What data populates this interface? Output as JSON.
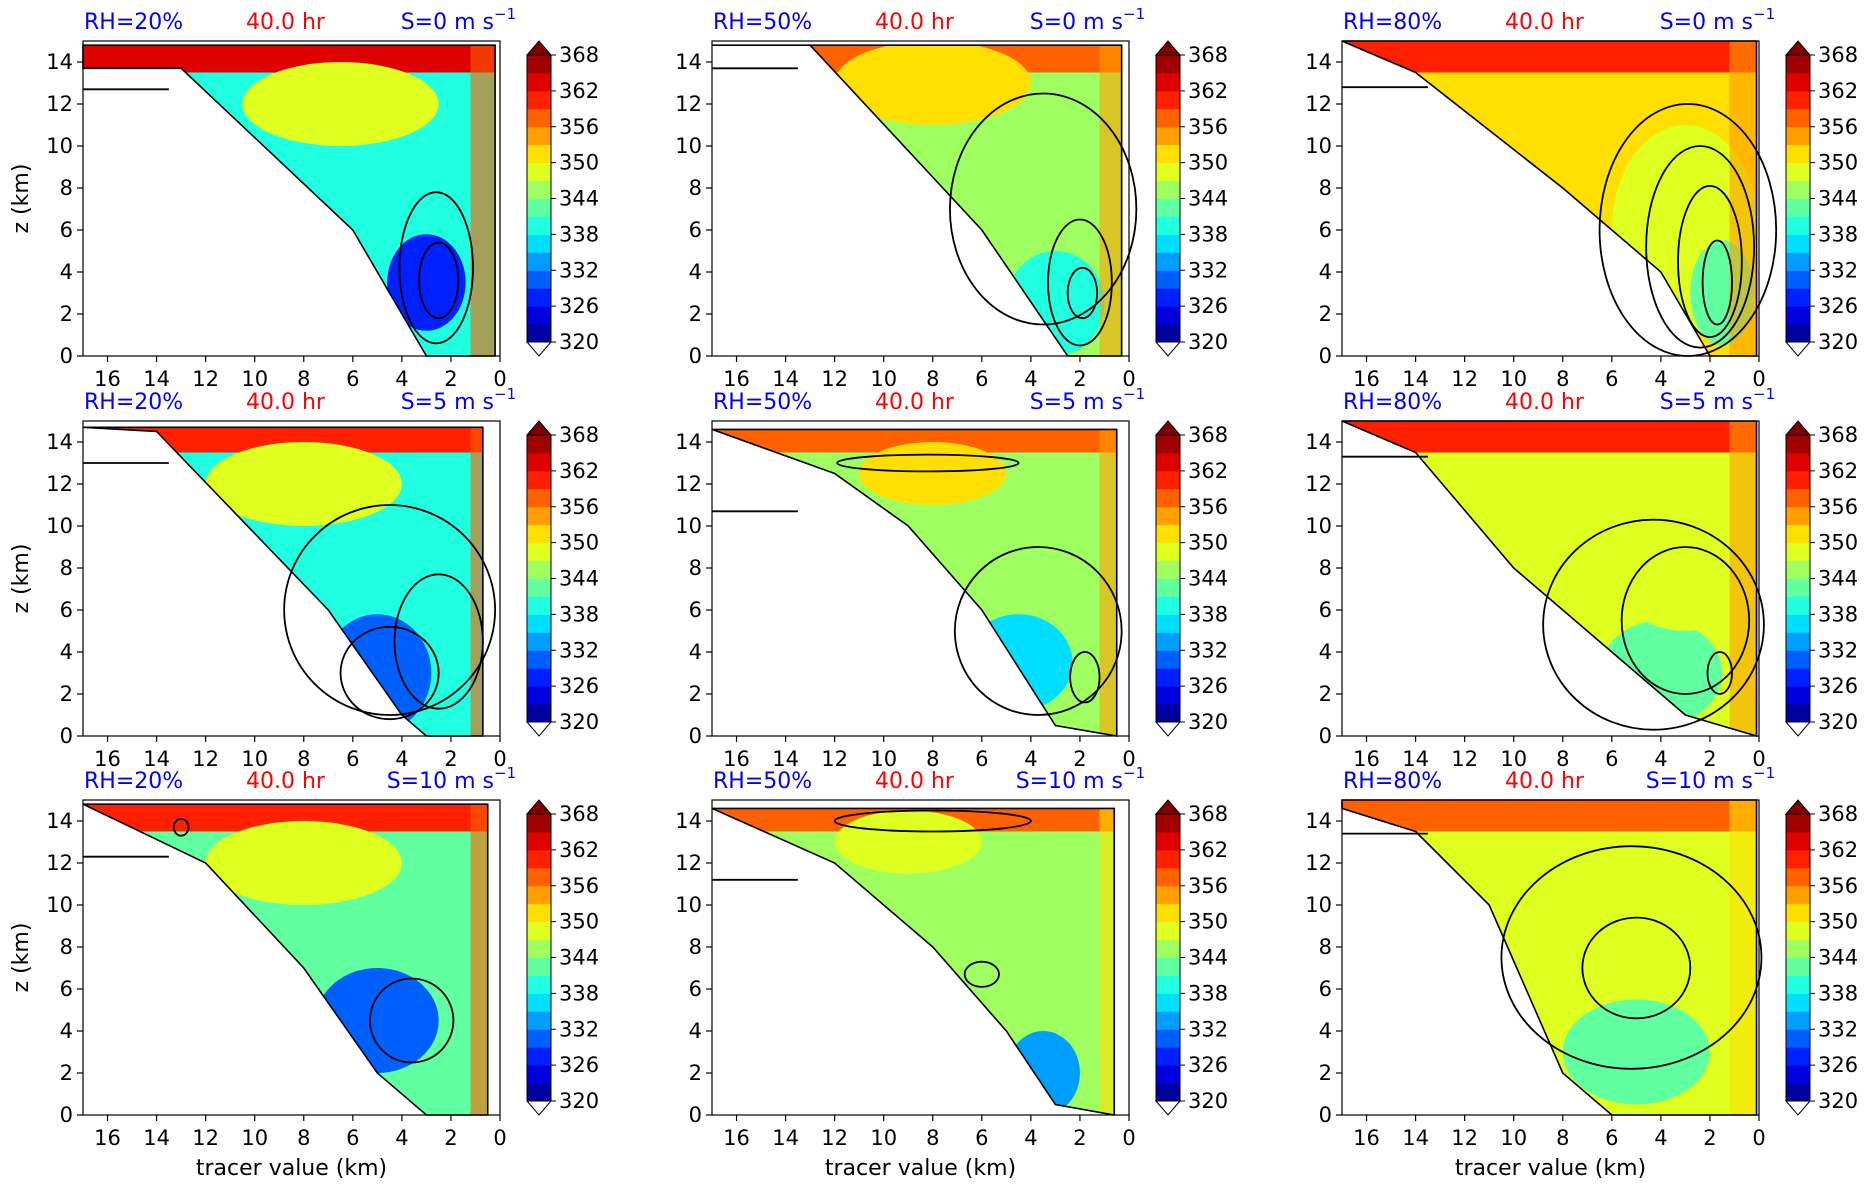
{
  "chart_data": {
    "type": "heatmap",
    "xlabel": "tracer value (km)",
    "ylabel": "z (km)",
    "xlim": [
      17,
      0
    ],
    "ylim": [
      0,
      15
    ],
    "x_ticks": [
      "16",
      "14",
      "12",
      "10",
      "8",
      "6",
      "4",
      "2",
      "0"
    ],
    "y_ticks": [
      "0",
      "2",
      "4",
      "6",
      "8",
      "10",
      "12",
      "14"
    ],
    "colorbar": {
      "range": [
        320,
        368
      ],
      "ticks": [
        "320",
        "326",
        "332",
        "338",
        "344",
        "350",
        "356",
        "362",
        "368"
      ],
      "extend": "both"
    },
    "title_colors": {
      "rh": "#0000ff",
      "time": "#ff0000",
      "shear": "#0000ff"
    },
    "panels": [
      {
        "rh": "RH=20%",
        "time": "40.0 hr",
        "shear": "S=0 m s",
        "shear_sup": "−1",
        "edge_top": 14.8,
        "boundary": [
          [
            17,
            13.7
          ],
          [
            13,
            13.7
          ],
          [
            6,
            6
          ],
          [
            3,
            0
          ]
        ],
        "right_edge": 0.2,
        "hline": 12.7,
        "base_value": 338,
        "blobs": [
          {
            "x": 3.0,
            "z": 3.5,
            "rx": 1.6,
            "rz": 2.3,
            "value": 328
          },
          {
            "x": 6.5,
            "z": 12.0,
            "rx": 4.0,
            "rz": 2.0,
            "value": 347
          }
        ],
        "top_value": 362,
        "contours": [
          {
            "cx": 2.6,
            "cz": 4.2,
            "rx": 1.5,
            "rz": 3.6
          },
          {
            "cx": 2.5,
            "cz": 3.6,
            "rx": 0.8,
            "rz": 1.8
          }
        ]
      },
      {
        "rh": "RH=50%",
        "time": "40.0 hr",
        "shear": "S=0 m s",
        "shear_sup": "−1",
        "edge_top": 14.8,
        "boundary": [
          [
            17,
            14.8
          ],
          [
            13,
            14.8
          ],
          [
            6,
            6
          ],
          [
            2.5,
            0
          ]
        ],
        "right_edge": 0.3,
        "hline": 13.7,
        "base_value": 346,
        "blobs": [
          {
            "x": 3.0,
            "z": 2.5,
            "rx": 2.0,
            "rz": 2.5,
            "value": 338
          },
          {
            "x": 8.0,
            "z": 13.0,
            "rx": 4.0,
            "rz": 2.0,
            "value": 350
          }
        ],
        "top_value": 358,
        "contours": [
          {
            "cx": 3.5,
            "cz": 7.0,
            "rx": 3.8,
            "rz": 5.5
          },
          {
            "cx": 2.0,
            "cz": 3.5,
            "rx": 1.3,
            "rz": 3.0
          },
          {
            "cx": 1.9,
            "cz": 3.0,
            "rx": 0.6,
            "rz": 1.2
          }
        ]
      },
      {
        "rh": "RH=80%",
        "time": "40.0 hr",
        "shear": "S=0 m s",
        "shear_sup": "−1",
        "edge_top": 15.0,
        "boundary": [
          [
            17,
            15
          ],
          [
            14,
            13.5
          ],
          [
            8,
            8
          ],
          [
            4,
            4
          ],
          [
            2,
            0
          ]
        ],
        "right_edge": 0.1,
        "hline": 12.8,
        "base_value": 352,
        "blobs": [
          {
            "x": 3.0,
            "z": 6.0,
            "rx": 3.0,
            "rz": 5.0,
            "value": 348
          },
          {
            "x": 1.5,
            "z": 3.0,
            "rx": 1.3,
            "rz": 2.5,
            "value": 343
          }
        ],
        "top_value": 359,
        "contours": [
          {
            "cx": 2.9,
            "cz": 6.0,
            "rx": 3.6,
            "rz": 6.0
          },
          {
            "cx": 2.4,
            "cz": 5.2,
            "rx": 2.2,
            "rz": 4.8
          },
          {
            "cx": 2.0,
            "cz": 4.5,
            "rx": 1.3,
            "rz": 3.6
          },
          {
            "cx": 1.7,
            "cz": 3.5,
            "rx": 0.6,
            "rz": 2.0
          }
        ]
      },
      {
        "rh": "RH=20%",
        "time": "40.0 hr",
        "shear": "S=5 m s",
        "shear_sup": "−1",
        "edge_top": 14.7,
        "boundary": [
          [
            17,
            14.7
          ],
          [
            14,
            14.5
          ],
          [
            7,
            6
          ],
          [
            4,
            1
          ],
          [
            3,
            0
          ]
        ],
        "right_edge": 0.7,
        "hline": 13.0,
        "base_value": 340,
        "blobs": [
          {
            "x": 5.0,
            "z": 3.0,
            "rx": 2.2,
            "rz": 2.8,
            "value": 330
          },
          {
            "x": 8.0,
            "z": 12.0,
            "rx": 4.0,
            "rz": 2.0,
            "value": 348
          }
        ],
        "top_value": 360,
        "contours": [
          {
            "cx": 4.5,
            "cz": 6.0,
            "rx": 4.3,
            "rz": 5.0
          },
          {
            "cx": 2.5,
            "cz": 4.5,
            "rx": 1.8,
            "rz": 3.2
          },
          {
            "cx": 4.5,
            "cz": 3.0,
            "rx": 2.0,
            "rz": 2.2
          }
        ]
      },
      {
        "rh": "RH=50%",
        "time": "40.0 hr",
        "shear": "S=5 m s",
        "shear_sup": "−1",
        "edge_top": 14.6,
        "boundary": [
          [
            17,
            14.6
          ],
          [
            12,
            12.5
          ],
          [
            9,
            10
          ],
          [
            6,
            6
          ],
          [
            3,
            0.5
          ]
        ],
        "right_edge": 0.5,
        "hline": 10.7,
        "base_value": 344,
        "blobs": [
          {
            "x": 4.5,
            "z": 3.5,
            "rx": 2.2,
            "rz": 2.3,
            "value": 336
          },
          {
            "x": 8.0,
            "z": 12.5,
            "rx": 3.0,
            "rz": 1.5,
            "value": 350
          }
        ],
        "top_value": 357,
        "contours": [
          {
            "cx": 3.7,
            "cz": 5.0,
            "rx": 3.4,
            "rz": 4.0
          },
          {
            "cx": 1.8,
            "cz": 2.8,
            "rx": 0.6,
            "rz": 1.2
          },
          {
            "cx": 8.2,
            "cz": 13.0,
            "rx": 3.7,
            "rz": 0.4
          }
        ]
      },
      {
        "rh": "RH=80%",
        "time": "40.0 hr",
        "shear": "S=5 m s",
        "shear_sup": "−1",
        "edge_top": 15.0,
        "boundary": [
          [
            17,
            15
          ],
          [
            14,
            13.5
          ],
          [
            10,
            8
          ],
          [
            6,
            4
          ],
          [
            3,
            1
          ]
        ],
        "right_edge": 0.1,
        "hline": 13.3,
        "base_value": 348,
        "blobs": [
          {
            "x": 4.0,
            "z": 3.0,
            "rx": 2.5,
            "rz": 2.5,
            "value": 342
          },
          {
            "x": 3.0,
            "z": 8.0,
            "rx": 3.0,
            "rz": 3.0,
            "value": 349
          }
        ],
        "top_value": 359,
        "contours": [
          {
            "cx": 4.3,
            "cz": 5.3,
            "rx": 4.5,
            "rz": 5.0
          },
          {
            "cx": 3.0,
            "cz": 5.5,
            "rx": 2.6,
            "rz": 3.5
          },
          {
            "cx": 1.6,
            "cz": 3.0,
            "rx": 0.5,
            "rz": 1.0
          }
        ]
      },
      {
        "rh": "RH=20%",
        "time": "40.0 hr",
        "shear": "S=10 m s",
        "shear_sup": "−1",
        "edge_top": 14.8,
        "boundary": [
          [
            17,
            14.8
          ],
          [
            12,
            12.0
          ],
          [
            8,
            7
          ],
          [
            5,
            2
          ],
          [
            3,
            0
          ]
        ],
        "right_edge": 0.5,
        "hline": 12.3,
        "base_value": 341,
        "blobs": [
          {
            "x": 5.0,
            "z": 4.5,
            "rx": 2.5,
            "rz": 2.5,
            "value": 331
          },
          {
            "x": 8.0,
            "z": 12.0,
            "rx": 4.0,
            "rz": 2.0,
            "value": 349
          }
        ],
        "top_value": 360,
        "contours": [
          {
            "cx": 3.6,
            "cz": 4.5,
            "rx": 1.7,
            "rz": 2.0
          },
          {
            "cx": 13.0,
            "cz": 13.7,
            "rx": 0.3,
            "rz": 0.4
          }
        ]
      },
      {
        "rh": "RH=50%",
        "time": "40.0 hr",
        "shear": "S=10 m s",
        "shear_sup": "−1",
        "edge_top": 14.6,
        "boundary": [
          [
            17,
            14.6
          ],
          [
            12,
            12
          ],
          [
            8,
            8
          ],
          [
            5,
            4
          ],
          [
            3,
            0.5
          ]
        ],
        "right_edge": 0.6,
        "hline": 11.2,
        "base_value": 344,
        "blobs": [
          {
            "x": 3.5,
            "z": 2.0,
            "rx": 1.5,
            "rz": 2.0,
            "value": 334
          },
          {
            "x": 9.0,
            "z": 13.0,
            "rx": 3.0,
            "rz": 1.5,
            "value": 349
          }
        ],
        "top_value": 356,
        "contours": [
          {
            "cx": 8.0,
            "cz": 14.0,
            "rx": 4.0,
            "rz": 0.5
          },
          {
            "cx": 6.0,
            "cz": 6.7,
            "rx": 0.7,
            "rz": 0.6
          }
        ]
      },
      {
        "rh": "RH=80%",
        "time": "40.0 hr",
        "shear": "S=10 m s",
        "shear_sup": "−1",
        "edge_top": 15.0,
        "boundary": [
          [
            17,
            14.6
          ],
          [
            14,
            13.5
          ],
          [
            11,
            10
          ],
          [
            8,
            2
          ],
          [
            6,
            0
          ]
        ],
        "right_edge": 0.1,
        "hline": 13.4,
        "base_value": 347,
        "blobs": [
          {
            "x": 5.0,
            "z": 3.0,
            "rx": 3.0,
            "rz": 2.5,
            "value": 343
          },
          {
            "x": 4.0,
            "z": 9.0,
            "rx": 3.0,
            "rz": 3.0,
            "value": 349
          }
        ],
        "top_value": 356,
        "contours": [
          {
            "cx": 5.2,
            "cz": 7.5,
            "rx": 5.3,
            "rz": 5.3
          },
          {
            "cx": 5.0,
            "cz": 7.0,
            "rx": 2.2,
            "rz": 2.4
          }
        ]
      }
    ]
  }
}
